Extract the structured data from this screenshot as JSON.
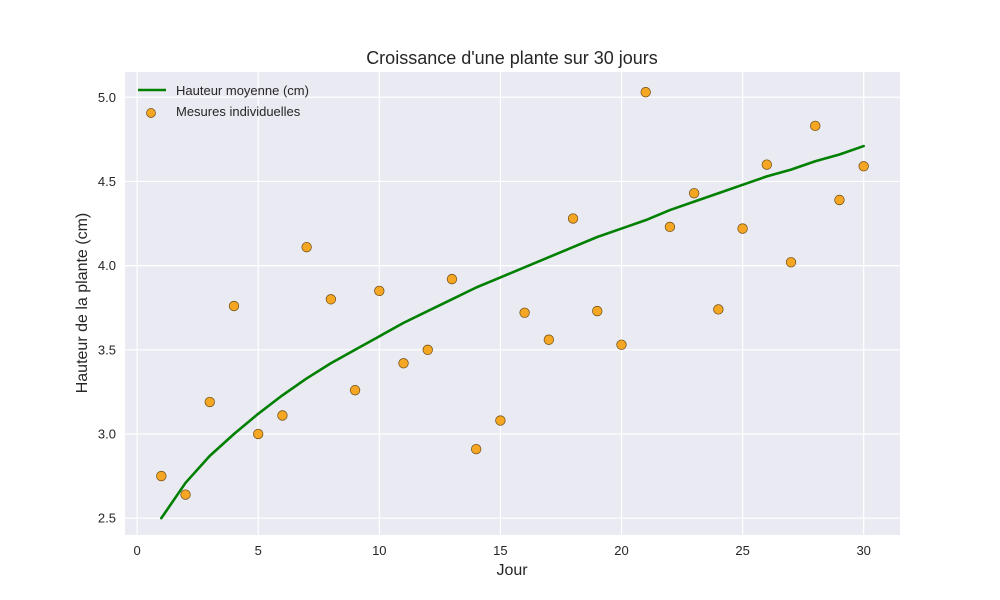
{
  "chart_data": {
    "type": "line",
    "title": "Croissance d'une plante sur 30 jours",
    "xlabel": "Jour",
    "ylabel": "Hauteur de la plante (cm)",
    "xlim": [
      -0.5,
      31.5
    ],
    "ylim": [
      2.4,
      5.15
    ],
    "xticks": [
      0,
      5,
      10,
      15,
      20,
      25,
      30
    ],
    "yticks": [
      2.5,
      3.0,
      3.5,
      4.0,
      4.5,
      5.0
    ],
    "xtick_labels": [
      "0",
      "5",
      "10",
      "15",
      "20",
      "25",
      "30"
    ],
    "ytick_labels": [
      "2.5",
      "3.0",
      "3.5",
      "4.0",
      "4.5",
      "5.0"
    ],
    "grid": true,
    "legend_position": "top-left",
    "series": [
      {
        "name": "Hauteur moyenne (cm)",
        "kind": "line",
        "color": "#008000",
        "x": [
          1,
          2,
          3,
          4,
          5,
          6,
          7,
          8,
          9,
          10,
          11,
          12,
          13,
          14,
          15,
          16,
          17,
          18,
          19,
          20,
          21,
          22,
          23,
          24,
          25,
          26,
          27,
          28,
          29,
          30
        ],
        "y": [
          2.5,
          2.71,
          2.87,
          3.0,
          3.12,
          3.23,
          3.33,
          3.42,
          3.5,
          3.58,
          3.66,
          3.73,
          3.8,
          3.87,
          3.93,
          3.99,
          4.05,
          4.11,
          4.17,
          4.22,
          4.27,
          4.33,
          4.38,
          4.43,
          4.48,
          4.53,
          4.57,
          4.62,
          4.66,
          4.71
        ]
      },
      {
        "name": "Mesures individuelles",
        "kind": "scatter",
        "color": "#F5A623",
        "edge_color": "#6b4a10",
        "x": [
          1,
          2,
          3,
          4,
          5,
          6,
          7,
          8,
          9,
          10,
          11,
          12,
          13,
          14,
          15,
          16,
          17,
          18,
          19,
          20,
          21,
          22,
          23,
          24,
          25,
          26,
          27,
          28,
          29,
          30
        ],
        "y": [
          2.75,
          2.64,
          3.19,
          3.76,
          3.0,
          3.11,
          4.11,
          3.8,
          3.26,
          3.85,
          3.42,
          3.5,
          3.92,
          2.91,
          3.08,
          3.72,
          3.56,
          4.28,
          3.73,
          3.53,
          5.03,
          4.23,
          4.43,
          3.74,
          4.22,
          4.6,
          4.02,
          4.83,
          4.39,
          4.59
        ]
      }
    ]
  },
  "colors": {
    "plot_background": "#EAEAF2",
    "grid": "#FFFFFF",
    "line": "#008000",
    "marker_fill": "#F5A623",
    "marker_edge": "#6b4a10"
  }
}
